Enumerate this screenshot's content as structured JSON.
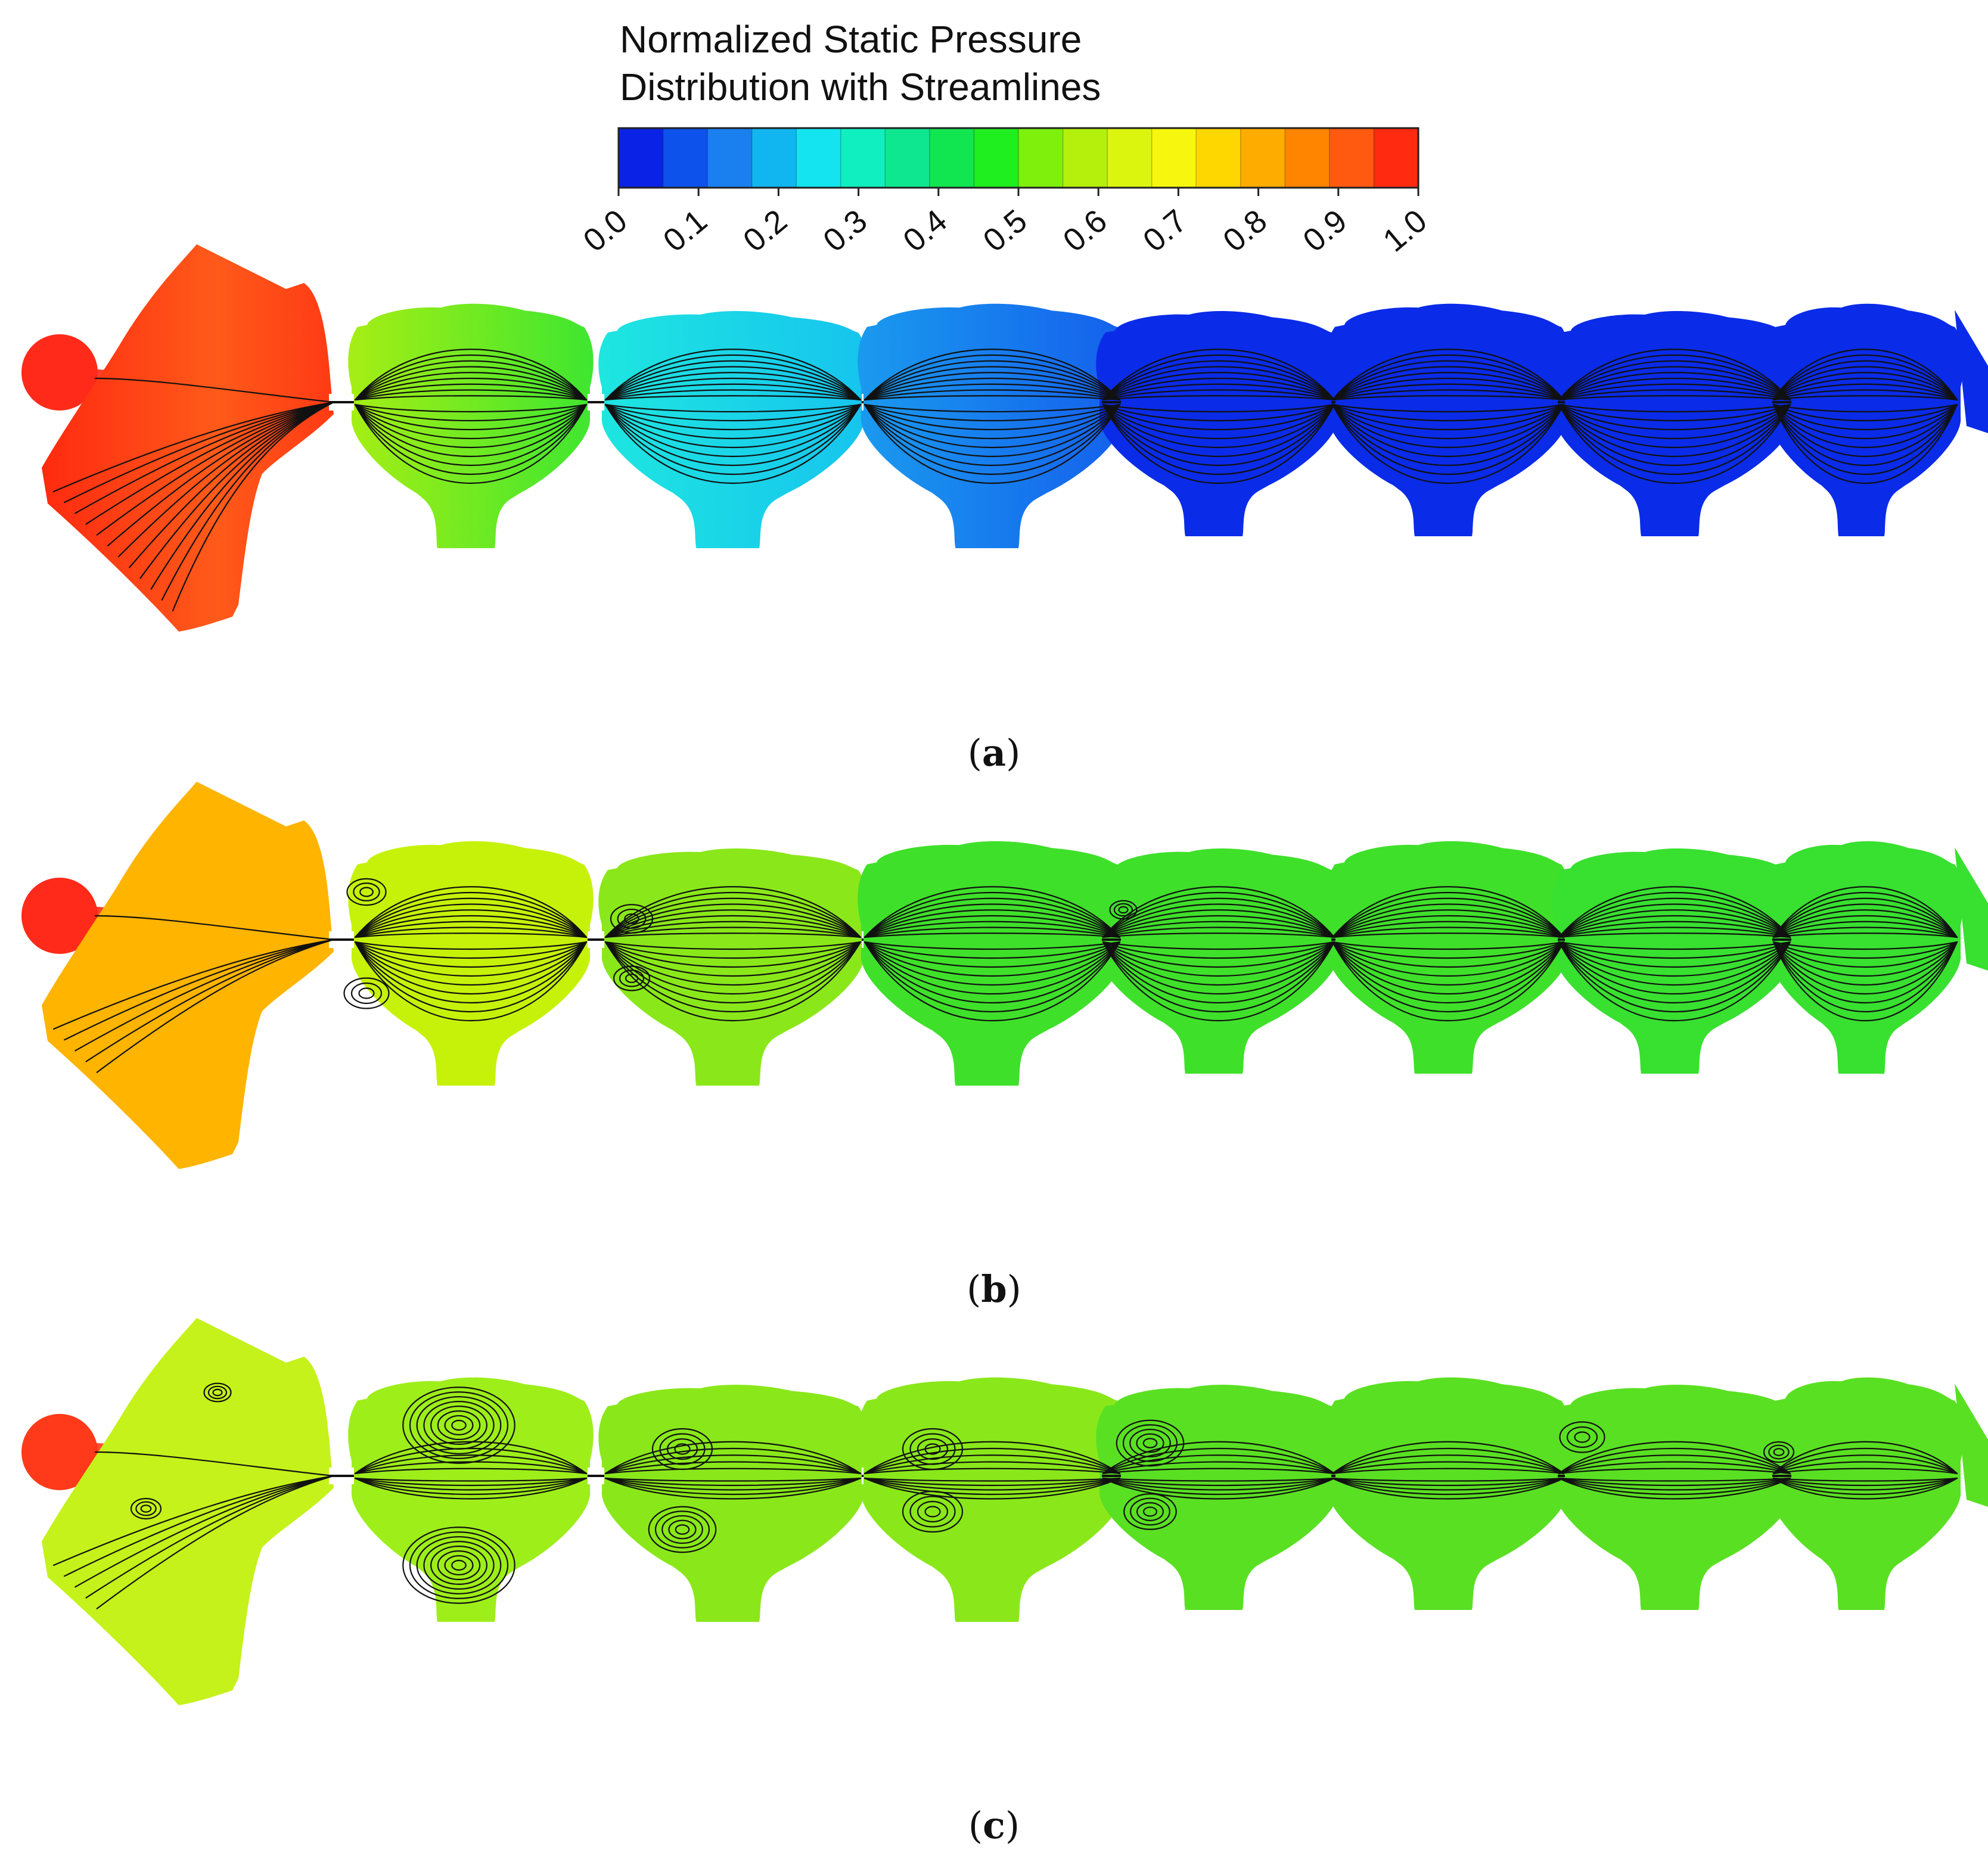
{
  "legend": {
    "title_line1": "Normalized Static Pressure",
    "title_line2": "Distribution with Streamlines",
    "ticks": [
      "0.0",
      "0.1",
      "0.2",
      "0.3",
      "0.4",
      "0.5",
      "0.6",
      "0.7",
      "0.8",
      "0.9",
      "1.0"
    ],
    "colors": [
      "#0a22e6",
      "#0e52ec",
      "#1a80ef",
      "#11b6f0",
      "#13e4f0",
      "#10efc0",
      "#0ee690",
      "#11e650",
      "#1fee1f",
      "#7ef00c",
      "#b4f00c",
      "#dcf50e",
      "#f6f60e",
      "#ffd700",
      "#ffac00",
      "#ff8400",
      "#ff5a10",
      "#ff2a10"
    ]
  },
  "panels": [
    {
      "caption_open": "(",
      "caption_letter": "a",
      "caption_close": ")",
      "inlet_color": "#ff2a1a",
      "chamber_colors": [
        "#ff3c14",
        "#7ee01a",
        "#22e8f0",
        "#1a80ef",
        "#0a2be8",
        "#0a2be8",
        "#0a2be8",
        "#0a2be8"
      ]
    },
    {
      "caption_open": "(",
      "caption_letter": "b",
      "caption_close": ")",
      "inlet_color": "#ff2a1a",
      "chamber_colors": [
        "#ffb400",
        "#c6f20a",
        "#8ae81a",
        "#3fe02a",
        "#3fe02a",
        "#3fe02a",
        "#38e030",
        "#38e030"
      ]
    },
    {
      "caption_open": "(",
      "caption_letter": "c",
      "caption_close": ")",
      "inlet_color": "#ff3a1a",
      "chamber_colors": [
        "#c4f21a",
        "#9eee1a",
        "#8ae81a",
        "#8ae81a",
        "#5ae022",
        "#5ae022",
        "#5ae022",
        "#5ae022"
      ]
    }
  ]
}
